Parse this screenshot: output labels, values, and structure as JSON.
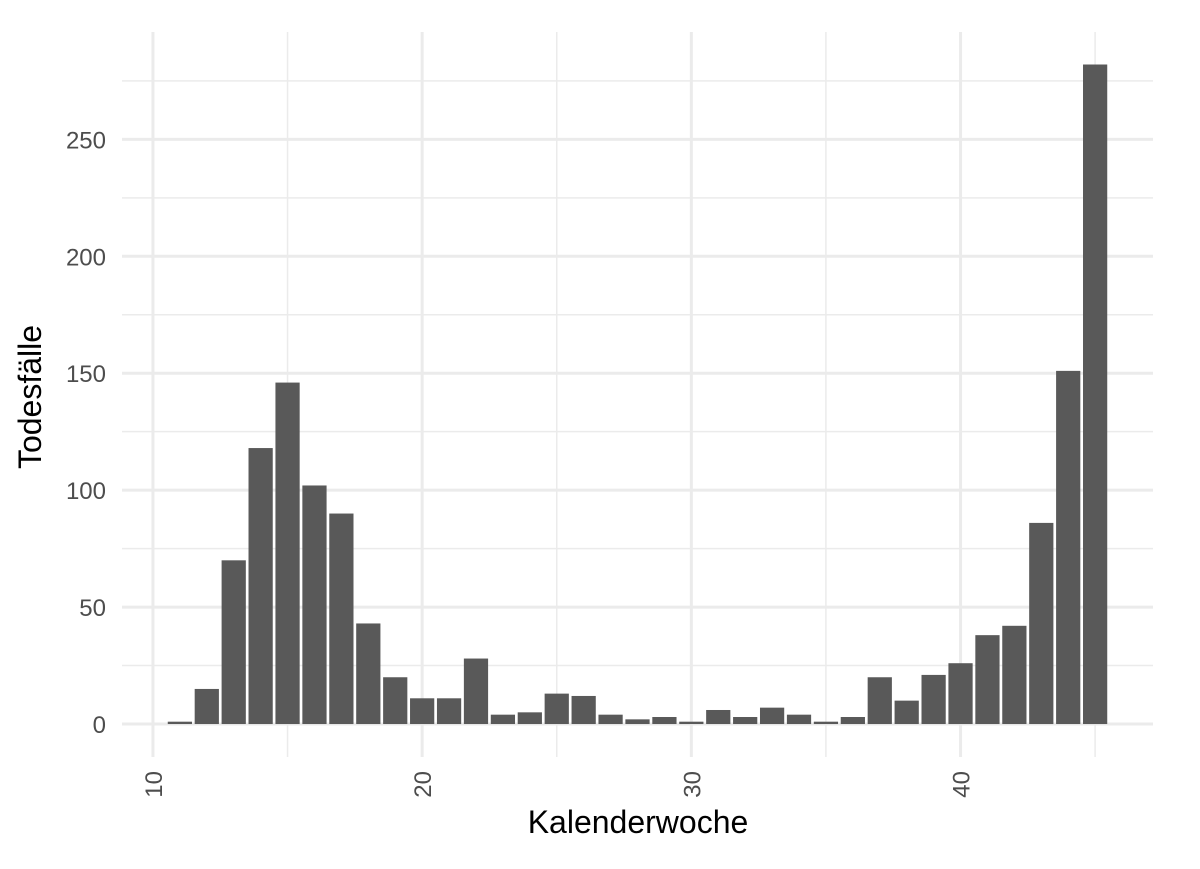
{
  "chart_data": {
    "type": "bar",
    "xlabel": "Kalenderwoche",
    "ylabel": "Todesfälle",
    "x_ticks": [
      10,
      20,
      30,
      40
    ],
    "y_ticks": [
      0,
      50,
      100,
      150,
      200,
      250
    ],
    "xlim": [
      8.85,
      47.15
    ],
    "ylim": [
      -14.1,
      295.9
    ],
    "grid": true,
    "categories": [
      11,
      12,
      13,
      14,
      15,
      16,
      17,
      18,
      19,
      20,
      21,
      22,
      23,
      24,
      25,
      26,
      27,
      28,
      29,
      30,
      31,
      32,
      33,
      34,
      35,
      36,
      37,
      38,
      39,
      40,
      41,
      42,
      43,
      44,
      45
    ],
    "values": [
      1,
      15,
      70,
      118,
      146,
      102,
      90,
      43,
      20,
      11,
      11,
      28,
      4,
      5,
      13,
      12,
      4,
      2,
      3,
      1,
      6,
      3,
      7,
      4,
      1,
      3,
      20,
      10,
      21,
      26,
      38,
      42,
      86,
      151,
      282
    ],
    "bar_color": "#595959",
    "grid_color": "#ebebeb"
  }
}
